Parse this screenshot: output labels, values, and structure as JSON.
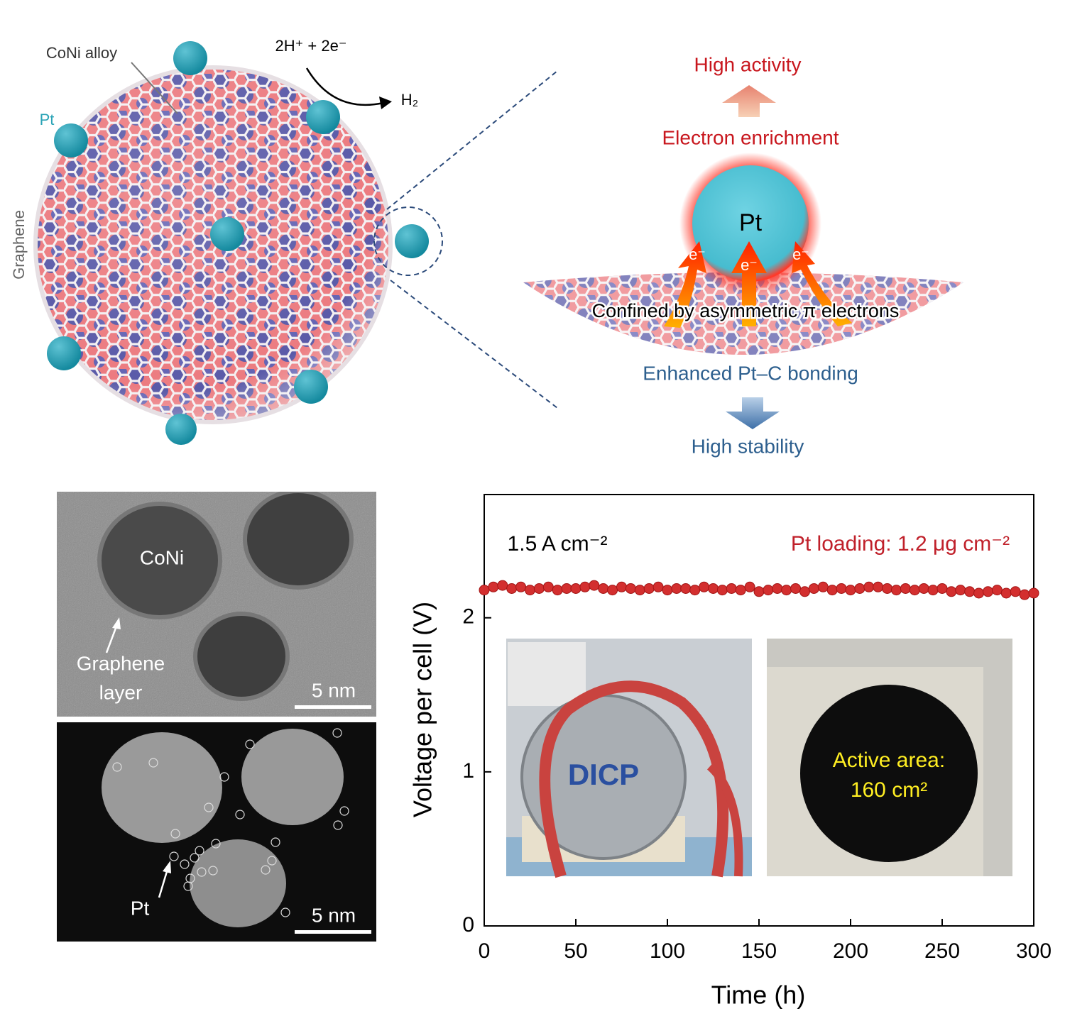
{
  "schematic": {
    "coni_alloy": "CoNi alloy",
    "reaction": "2H⁺ + 2e⁻",
    "product": "H₂",
    "pt": "Pt",
    "graphene": "Graphene",
    "high_activity": "High activity",
    "electron_enrichment": "Electron enrichment",
    "pt_center": "Pt",
    "electron": "e⁻",
    "confined": "Confined by asymmetric π electrons",
    "bonding": "Enhanced Pt–C bonding",
    "high_stability": "High stability"
  },
  "tem": {
    "coni": "CoNi",
    "graphene_line1": "Graphene",
    "graphene_line2": "layer",
    "scale": "5 nm"
  },
  "haadf": {
    "pt": "Pt",
    "scale": "5 nm"
  },
  "chart_data": {
    "type": "scatter",
    "xlabel": "Time (h)",
    "ylabel": "Voltage per cell (V)",
    "annotations": [
      "1.5 A cm⁻²",
      "Pt loading: 1.2 μg cm⁻²"
    ],
    "inset_labels": [
      "DICP",
      "Active area:",
      "160 cm²"
    ],
    "xlim": [
      0,
      300
    ],
    "xticks": [
      0,
      50,
      100,
      150,
      200,
      250,
      300
    ],
    "ylim": [
      0,
      2.8
    ],
    "yticks": [
      0,
      1,
      2
    ],
    "x": [
      0,
      5,
      10,
      15,
      20,
      25,
      30,
      35,
      40,
      45,
      50,
      55,
      60,
      65,
      70,
      75,
      80,
      85,
      90,
      95,
      100,
      105,
      110,
      115,
      120,
      125,
      130,
      135,
      140,
      145,
      150,
      155,
      160,
      165,
      170,
      175,
      180,
      185,
      190,
      195,
      200,
      205,
      210,
      215,
      220,
      225,
      230,
      235,
      240,
      245,
      250,
      255,
      260,
      265,
      270,
      275,
      280,
      285,
      290,
      295,
      300
    ],
    "series": [
      {
        "name": "Voltage",
        "color": "#d32f2f",
        "values": [
          2.18,
          2.2,
          2.21,
          2.19,
          2.2,
          2.18,
          2.19,
          2.2,
          2.18,
          2.19,
          2.19,
          2.2,
          2.21,
          2.19,
          2.18,
          2.2,
          2.19,
          2.18,
          2.19,
          2.2,
          2.18,
          2.19,
          2.19,
          2.18,
          2.2,
          2.19,
          2.18,
          2.19,
          2.18,
          2.2,
          2.17,
          2.18,
          2.19,
          2.18,
          2.19,
          2.17,
          2.19,
          2.2,
          2.18,
          2.19,
          2.18,
          2.19,
          2.2,
          2.2,
          2.19,
          2.18,
          2.19,
          2.18,
          2.19,
          2.18,
          2.19,
          2.17,
          2.18,
          2.17,
          2.16,
          2.17,
          2.18,
          2.16,
          2.17,
          2.15,
          2.16
        ]
      }
    ]
  }
}
